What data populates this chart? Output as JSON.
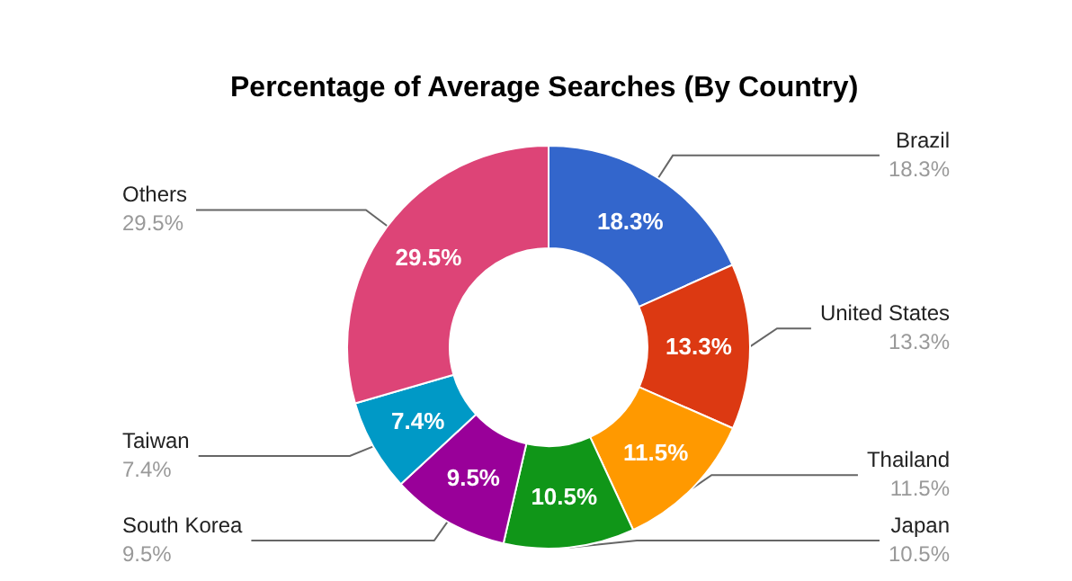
{
  "chart_data": {
    "type": "donut",
    "title": "Percentage of Average Searches (By Country)",
    "categories": [
      "Brazil",
      "United States",
      "Thailand",
      "Japan",
      "South Korea",
      "Taiwan",
      "Others"
    ],
    "values": [
      18.3,
      13.3,
      11.5,
      10.5,
      9.5,
      7.4,
      29.5
    ],
    "value_labels": [
      "18.3%",
      "13.3%",
      "11.5%",
      "10.5%",
      "9.5%",
      "7.4%",
      "29.5%"
    ],
    "colors": [
      "#3366cc",
      "#dc3912",
      "#ff9900",
      "#109618",
      "#990099",
      "#0099c6",
      "#dd4477"
    ],
    "legend": false
  }
}
